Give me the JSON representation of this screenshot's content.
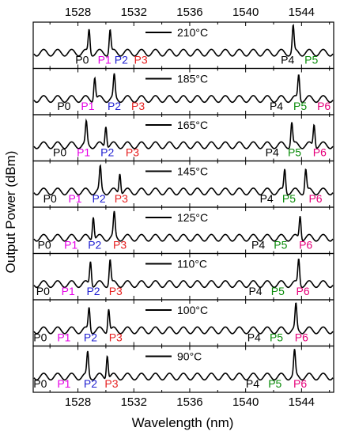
{
  "chart_data": {
    "type": "line",
    "xlabel": "Wavelength (nm)",
    "ylabel": "Output Power (dBm)",
    "xlim": [
      1524.8,
      1546.3
    ],
    "xticks": [
      1528,
      1532,
      1536,
      1540,
      1544
    ],
    "top_axis_ticks": [
      1528,
      1532,
      1536,
      1540,
      1544
    ],
    "stacked_panels": true,
    "ripple_period_nm": 1.0,
    "colors": {
      "P0": "#000000",
      "P1": "#e600e6",
      "P2": "#1f1fd1",
      "P3": "#e61f1f",
      "P4": "#000000",
      "P5": "#0a8c0a",
      "P6": "#e6007a",
      "trace": "#000000"
    },
    "panels": [
      {
        "temperature": "210°C",
        "peaks": [
          {
            "x": 1528.8,
            "h": 0.82
          },
          {
            "x": 1530.3,
            "h": 0.8
          },
          {
            "x": 1543.4,
            "h": 0.9
          }
        ],
        "labels": [
          {
            "name": "P0",
            "x": 1528.3
          },
          {
            "name": "P1",
            "x": 1529.9
          },
          {
            "name": "P2",
            "x": 1531.1
          },
          {
            "name": "P3",
            "x": 1532.5
          },
          {
            "name": "P4",
            "x": 1543.0
          },
          {
            "name": "P5",
            "x": 1544.7
          }
        ]
      },
      {
        "temperature": "185°C",
        "peaks": [
          {
            "x": 1529.2,
            "h": 0.8
          },
          {
            "x": 1530.6,
            "h": 0.78
          },
          {
            "x": 1543.8,
            "h": 0.85
          }
        ],
        "labels": [
          {
            "name": "P0",
            "x": 1527.0
          },
          {
            "name": "P1",
            "x": 1528.7
          },
          {
            "name": "P2",
            "x": 1530.6
          },
          {
            "name": "P3",
            "x": 1532.3
          },
          {
            "name": "P4",
            "x": 1542.2
          },
          {
            "name": "P5",
            "x": 1543.9
          },
          {
            "name": "P6",
            "x": 1545.6
          }
        ]
      },
      {
        "temperature": "165°C",
        "peaks": [
          {
            "x": 1528.6,
            "h": 0.75
          },
          {
            "x": 1530.0,
            "h": 0.75
          },
          {
            "x": 1543.3,
            "h": 0.8
          },
          {
            "x": 1544.9,
            "h": 0.78
          }
        ],
        "labels": [
          {
            "name": "P0",
            "x": 1526.7
          },
          {
            "name": "P1",
            "x": 1528.4
          },
          {
            "name": "P2",
            "x": 1530.1
          },
          {
            "name": "P3",
            "x": 1531.9
          },
          {
            "name": "P4",
            "x": 1541.9
          },
          {
            "name": "P5",
            "x": 1543.5
          },
          {
            "name": "P6",
            "x": 1545.3
          }
        ]
      },
      {
        "temperature": "145°C",
        "peaks": [
          {
            "x": 1529.6,
            "h": 0.8
          },
          {
            "x": 1531.0,
            "h": 0.72
          },
          {
            "x": 1542.8,
            "h": 0.78
          },
          {
            "x": 1544.3,
            "h": 0.78
          }
        ],
        "labels": [
          {
            "name": "P0",
            "x": 1526.0
          },
          {
            "name": "P1",
            "x": 1527.8
          },
          {
            "name": "P2",
            "x": 1529.5
          },
          {
            "name": "P3",
            "x": 1531.1
          },
          {
            "name": "P4",
            "x": 1541.5
          },
          {
            "name": "P5",
            "x": 1543.1
          },
          {
            "name": "P6",
            "x": 1545.0
          }
        ]
      },
      {
        "temperature": "125°C",
        "peaks": [
          {
            "x": 1529.1,
            "h": 0.82
          },
          {
            "x": 1530.6,
            "h": 0.82
          },
          {
            "x": 1543.9,
            "h": 0.82
          }
        ],
        "labels": [
          {
            "name": "P0",
            "x": 1525.6
          },
          {
            "name": "P1",
            "x": 1527.5
          },
          {
            "name": "P2",
            "x": 1529.2
          },
          {
            "name": "P3",
            "x": 1531.0
          },
          {
            "name": "P4",
            "x": 1540.9
          },
          {
            "name": "P5",
            "x": 1542.5
          },
          {
            "name": "P6",
            "x": 1544.3
          }
        ]
      },
      {
        "temperature": "110°C",
        "peaks": [
          {
            "x": 1528.9,
            "h": 0.85
          },
          {
            "x": 1530.3,
            "h": 0.85
          },
          {
            "x": 1543.8,
            "h": 0.88
          }
        ],
        "labels": [
          {
            "name": "P0",
            "x": 1525.5
          },
          {
            "name": "P1",
            "x": 1527.3
          },
          {
            "name": "P2",
            "x": 1529.1
          },
          {
            "name": "P3",
            "x": 1530.7
          },
          {
            "name": "P4",
            "x": 1540.7
          },
          {
            "name": "P5",
            "x": 1542.3
          },
          {
            "name": "P6",
            "x": 1544.1
          }
        ]
      },
      {
        "temperature": "100°C",
        "peaks": [
          {
            "x": 1528.8,
            "h": 0.8
          },
          {
            "x": 1530.2,
            "h": 0.8
          },
          {
            "x": 1543.6,
            "h": 0.85
          }
        ],
        "labels": [
          {
            "name": "P0",
            "x": 1525.3
          },
          {
            "name": "P1",
            "x": 1527.0
          },
          {
            "name": "P2",
            "x": 1528.9
          },
          {
            "name": "P3",
            "x": 1530.7
          },
          {
            "name": "P4",
            "x": 1540.6
          },
          {
            "name": "P5",
            "x": 1542.2
          },
          {
            "name": "P6",
            "x": 1544.0
          }
        ]
      },
      {
        "temperature": "90°C",
        "peaks": [
          {
            "x": 1528.7,
            "h": 0.82
          },
          {
            "x": 1530.1,
            "h": 0.82
          },
          {
            "x": 1543.5,
            "h": 0.85
          }
        ],
        "labels": [
          {
            "name": "P0",
            "x": 1525.3
          },
          {
            "name": "P1",
            "x": 1527.0
          },
          {
            "name": "P2",
            "x": 1528.9
          },
          {
            "name": "P3",
            "x": 1530.4
          },
          {
            "name": "P4",
            "x": 1540.5
          },
          {
            "name": "P5",
            "x": 1542.1
          },
          {
            "name": "P6",
            "x": 1543.9
          }
        ]
      }
    ]
  }
}
